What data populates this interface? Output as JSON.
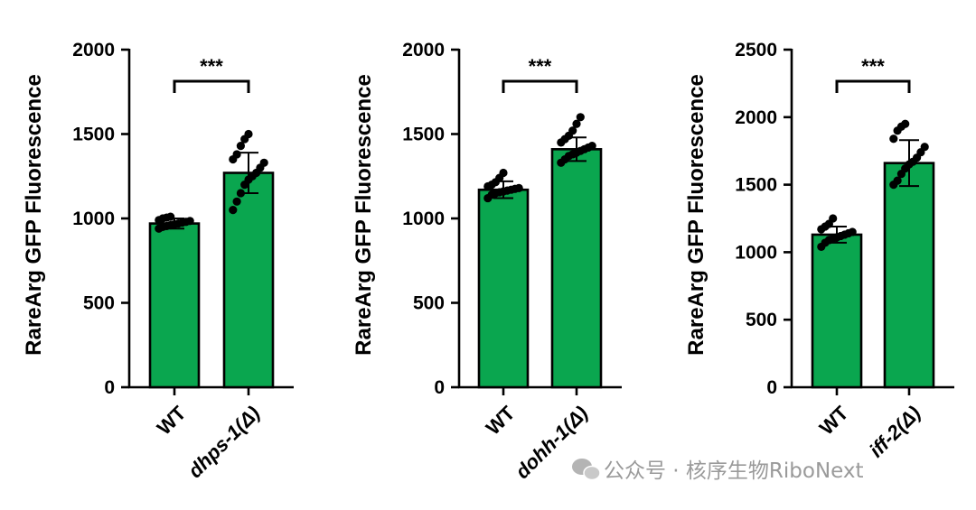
{
  "chart_data": [
    {
      "type": "bar",
      "ylabel": "RareArg GFP Fluorescence",
      "ylim": [
        0,
        2000
      ],
      "yticks": [
        0,
        500,
        1000,
        1500,
        2000
      ],
      "categories": [
        "WT",
        "dhps-1(Δ)"
      ],
      "category_italic": [
        false,
        true
      ],
      "values": [
        970,
        1270
      ],
      "error": [
        30,
        120
      ],
      "significance": "***",
      "bar_color": "#0aa64f",
      "points": [
        [
          940,
          950,
          955,
          960,
          965,
          970,
          975,
          980,
          985,
          990,
          1000,
          1005,
          1010
        ],
        [
          1050,
          1100,
          1150,
          1200,
          1230,
          1250,
          1270,
          1300,
          1330,
          1350,
          1380,
          1430,
          1470,
          1500
        ]
      ]
    },
    {
      "type": "bar",
      "ylabel": "RareArg GFP Fluorescence",
      "ylim": [
        0,
        2000
      ],
      "yticks": [
        0,
        500,
        1000,
        1500,
        2000
      ],
      "categories": [
        "WT",
        "dohh-1(Δ)"
      ],
      "category_italic": [
        false,
        true
      ],
      "values": [
        1170,
        1410
      ],
      "error": [
        50,
        70
      ],
      "significance": "***",
      "bar_color": "#0aa64f",
      "points": [
        [
          1120,
          1140,
          1150,
          1155,
          1160,
          1165,
          1170,
          1175,
          1180,
          1190,
          1200,
          1215,
          1240,
          1270
        ],
        [
          1330,
          1350,
          1370,
          1380,
          1390,
          1400,
          1410,
          1420,
          1430,
          1450,
          1470,
          1490,
          1520,
          1560,
          1600
        ]
      ]
    },
    {
      "type": "bar",
      "ylabel": "RareArg GFP Fluorescence",
      "ylim": [
        0,
        2500
      ],
      "yticks": [
        0,
        500,
        1000,
        1500,
        2000,
        2500
      ],
      "categories": [
        "WT",
        "iff-2(Δ)"
      ],
      "category_italic": [
        false,
        true
      ],
      "values": [
        1130,
        1660
      ],
      "error": [
        60,
        170
      ],
      "significance": "***",
      "bar_color": "#0aa64f",
      "points": [
        [
          1040,
          1070,
          1090,
          1100,
          1110,
          1120,
          1130,
          1140,
          1150,
          1170,
          1190,
          1210,
          1250
        ],
        [
          1500,
          1530,
          1580,
          1620,
          1650,
          1670,
          1700,
          1740,
          1780,
          1840,
          1900,
          1930,
          1950
        ]
      ]
    }
  ],
  "watermark": {
    "text": "公众号 · 核序生物RiboNext",
    "icon": "wechat-icon"
  }
}
